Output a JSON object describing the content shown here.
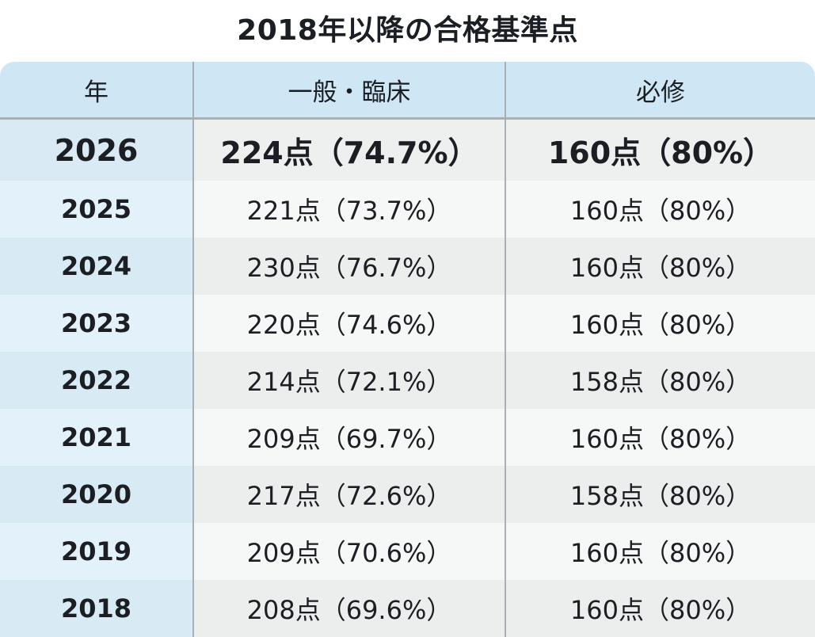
{
  "title": "2018年以降の合格基準点",
  "headers": {
    "year": "年",
    "general": "一般・臨床",
    "required": "必修"
  },
  "highlight": {
    "year": "2026",
    "general": "224点（74.7%）",
    "required": "160点（80%）"
  },
  "rows": [
    {
      "year": "2025",
      "general": "221点（73.7%）",
      "required": "160点（80%）"
    },
    {
      "year": "2024",
      "general": "230点（76.7%）",
      "required": "160点（80%）"
    },
    {
      "year": "2023",
      "general": "220点（74.6%）",
      "required": "160点（80%）"
    },
    {
      "year": "2022",
      "general": "214点（72.1%）",
      "required": "158点（80%）"
    },
    {
      "year": "2021",
      "general": "209点（69.7%）",
      "required": "160点（80%）"
    },
    {
      "year": "2020",
      "general": "217点（72.6%）",
      "required": "158点（80%）"
    },
    {
      "year": "2019",
      "general": "209点（70.6%）",
      "required": "160点（80%）"
    },
    {
      "year": "2018",
      "general": "208点（69.6%）",
      "required": "160点（80%）"
    }
  ],
  "colors": {
    "header_bg": "#cfe7f5",
    "year_col_bg": "#e3f2fa",
    "divider": "#a9b0b5"
  }
}
